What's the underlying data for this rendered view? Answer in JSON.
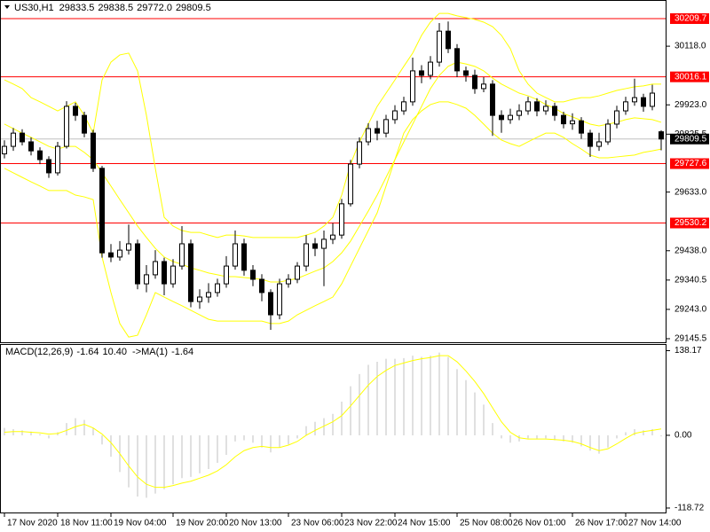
{
  "chart_data": {
    "type": "candlestick",
    "title": "US30,H1",
    "last_low_label": "29772.0",
    "up_color": "#ffffff",
    "down_color": "#000000",
    "categories": [
      "17 Nov 2020",
      null,
      null,
      null,
      null,
      null,
      "18 Nov 11:00",
      null,
      null,
      null,
      null,
      null,
      "19 Nov 04:00",
      null,
      null,
      null,
      null,
      null,
      null,
      "19 Nov 20:00",
      null,
      null,
      null,
      null,
      null,
      "20 Nov 13:00",
      null,
      null,
      null,
      null,
      null,
      null,
      "23 Nov 06:00",
      null,
      null,
      null,
      null,
      null,
      "23 Nov 22:00",
      null,
      null,
      null,
      null,
      null,
      "24 Nov 15:00",
      null,
      null,
      null,
      null,
      null,
      null,
      "25 Nov 08:00",
      null,
      null,
      null,
      null,
      null,
      "26 Nov 01:00",
      null,
      null,
      null,
      null,
      null,
      null,
      "26 Nov 17:00",
      null,
      null,
      null,
      null,
      null,
      "27 Nov 14:00",
      null,
      null,
      null,
      null
    ],
    "candles": [
      [
        29760,
        29805,
        29745,
        29785
      ],
      [
        29785,
        29846,
        29770,
        29829
      ],
      [
        29829,
        29842,
        29788,
        29800
      ],
      [
        29800,
        29815,
        29755,
        29770
      ],
      [
        29770,
        29782,
        29726,
        29741
      ],
      [
        29741,
        29752,
        29680,
        29697
      ],
      [
        29697,
        29800,
        29688,
        29785
      ],
      [
        29785,
        29935,
        29778,
        29918
      ],
      [
        29918,
        29930,
        29870,
        29888
      ],
      [
        29888,
        29900,
        29815,
        29829
      ],
      [
        29829,
        29840,
        29700,
        29712
      ],
      [
        29712,
        29720,
        29415,
        29431
      ],
      [
        29431,
        29460,
        29400,
        29417
      ],
      [
        29417,
        29470,
        29405,
        29440
      ],
      [
        29440,
        29525,
        29425,
        29461
      ],
      [
        29461,
        29475,
        29310,
        29328
      ],
      [
        29328,
        29390,
        29300,
        29358
      ],
      [
        29358,
        29440,
        29345,
        29402
      ],
      [
        29402,
        29415,
        29290,
        29328
      ],
      [
        29328,
        29410,
        29315,
        29387
      ],
      [
        29387,
        29520,
        29375,
        29461
      ],
      [
        29461,
        29475,
        29250,
        29269
      ],
      [
        29269,
        29310,
        29245,
        29284
      ],
      [
        29284,
        29330,
        29265,
        29299
      ],
      [
        29299,
        29345,
        29285,
        29328
      ],
      [
        29328,
        29420,
        29315,
        29387
      ],
      [
        29387,
        29505,
        29375,
        29461
      ],
      [
        29461,
        29478,
        29355,
        29373
      ],
      [
        29373,
        29390,
        29320,
        29343
      ],
      [
        29343,
        29360,
        29270,
        29299
      ],
      [
        29299,
        29310,
        29175,
        29225
      ],
      [
        29225,
        29345,
        29210,
        29328
      ],
      [
        29328,
        29360,
        29315,
        29343
      ],
      [
        29343,
        29400,
        29330,
        29387
      ],
      [
        29387,
        29490,
        29370,
        29461
      ],
      [
        29461,
        29480,
        29420,
        29446
      ],
      [
        29446,
        29505,
        29320,
        29476
      ],
      [
        29476,
        29530,
        29460,
        29490
      ],
      [
        29490,
        29610,
        29478,
        29594
      ],
      [
        29594,
        29740,
        29585,
        29726
      ],
      [
        29726,
        29815,
        29712,
        29800
      ],
      [
        29800,
        29862,
        29788,
        29844
      ],
      [
        29844,
        29870,
        29805,
        29829
      ],
      [
        29829,
        29890,
        29815,
        29874
      ],
      [
        29874,
        29922,
        29860,
        29903
      ],
      [
        29903,
        29950,
        29890,
        29933
      ],
      [
        29933,
        30080,
        29920,
        30036
      ],
      [
        30036,
        30055,
        29995,
        30021
      ],
      [
        30021,
        30085,
        30008,
        30065
      ],
      [
        30065,
        30195,
        30050,
        30168
      ],
      [
        30168,
        30200,
        30095,
        30110
      ],
      [
        30110,
        30125,
        30015,
        30036
      ],
      [
        30036,
        30050,
        30000,
        30021
      ],
      [
        30021,
        30040,
        29960,
        29977
      ],
      [
        29977,
        30015,
        29965,
        29992
      ],
      [
        29992,
        30005,
        29820,
        29888
      ],
      [
        29888,
        29905,
        29830,
        29874
      ],
      [
        29874,
        29910,
        29860,
        29888
      ],
      [
        29888,
        29925,
        29872,
        29903
      ],
      [
        29903,
        29950,
        29890,
        29933
      ],
      [
        29933,
        29945,
        29885,
        29903
      ],
      [
        29903,
        29938,
        29890,
        29918
      ],
      [
        29918,
        29930,
        29870,
        29888
      ],
      [
        29888,
        29900,
        29845,
        29860
      ],
      [
        29860,
        29895,
        29840,
        29870
      ],
      [
        29870,
        29882,
        29810,
        29829
      ],
      [
        29829,
        29840,
        29750,
        29785
      ],
      [
        29785,
        29830,
        29770,
        29800
      ],
      [
        29800,
        29875,
        29790,
        29859
      ],
      [
        29859,
        29920,
        29845,
        29903
      ],
      [
        29903,
        29950,
        29890,
        29933
      ],
      [
        29933,
        30010,
        29920,
        29947
      ],
      [
        29947,
        29960,
        29900,
        29918
      ],
      [
        29918,
        29990,
        29905,
        29962
      ],
      [
        29833.5,
        29838.5,
        29772,
        29809.5
      ]
    ],
    "bands": {
      "color": "#ffff00",
      "upper": [
        30006,
        29992,
        29977,
        29947,
        29933,
        29918,
        29903,
        29918,
        29933,
        29888,
        29829,
        30006,
        30065,
        30089,
        30095,
        30036,
        29888,
        29712,
        29549,
        29520,
        29505,
        29499,
        29499,
        29490,
        29482,
        29490,
        29490,
        29487,
        29482,
        29482,
        29482,
        29482,
        29482,
        29482,
        29490,
        29499,
        29520,
        29549,
        29623,
        29726,
        29800,
        29859,
        29918,
        29962,
        30006,
        30051,
        30095,
        30154,
        30198,
        30227,
        30227,
        30219,
        30213,
        30207,
        30198,
        30183,
        30154,
        30110,
        30036,
        29992,
        29962,
        29947,
        29933,
        29933,
        29941,
        29947,
        29947,
        29953,
        29962,
        29971,
        29977,
        29983,
        29986,
        29992,
        29992
      ],
      "middle": [
        29859,
        29844,
        29829,
        29815,
        29800,
        29785,
        29776,
        29785,
        29785,
        29765,
        29741,
        29697,
        29653,
        29608,
        29564,
        29520,
        29482,
        29446,
        29417,
        29402,
        29393,
        29381,
        29373,
        29364,
        29358,
        29352,
        29352,
        29349,
        29346,
        29343,
        29334,
        29334,
        29340,
        29346,
        29358,
        29370,
        29381,
        29402,
        29431,
        29470,
        29520,
        29570,
        29623,
        29682,
        29741,
        29800,
        29859,
        29918,
        29977,
        30021,
        30051,
        30065,
        30059,
        30051,
        30036,
        30012,
        29992,
        29977,
        29962,
        29953,
        29941,
        29924,
        29912,
        29894,
        29883,
        29871,
        29859,
        29853,
        29859,
        29865,
        29874,
        29880,
        29877,
        29874,
        29865
      ],
      "lower": [
        29712,
        29697,
        29682,
        29667,
        29653,
        29638,
        29638,
        29638,
        29623,
        29617,
        29608,
        29417,
        29299,
        29196,
        29151,
        29157,
        29225,
        29299,
        29284,
        29269,
        29255,
        29240,
        29225,
        29210,
        29204,
        29204,
        29204,
        29204,
        29204,
        29204,
        29196,
        29196,
        29204,
        29225,
        29240,
        29255,
        29269,
        29284,
        29328,
        29387,
        29446,
        29505,
        29564,
        29653,
        29741,
        29829,
        29874,
        29903,
        29924,
        29933,
        29933,
        29924,
        29912,
        29888,
        29859,
        29829,
        29806,
        29794,
        29785,
        29800,
        29815,
        29829,
        29829,
        29815,
        29794,
        29776,
        29756,
        29747,
        29747,
        29750,
        29753,
        29756,
        29765,
        29770,
        29776
      ]
    },
    "levels": {
      "color": "#ff0000",
      "values": [
        30209.7,
        30016.1,
        29727.6,
        29530.2
      ]
    },
    "current_color": "#c0c0c0",
    "ylim": [
      29133.7,
      30271.6
    ],
    "yticks": [
      {
        "value": 30118,
        "label": "30118.0"
      },
      {
        "value": 29923,
        "label": "29923.0"
      },
      29825.5,
      {
        "value": 29633,
        "label": "29633.0"
      },
      {
        "value": 29438,
        "label": "29438.0"
      },
      29340.5,
      {
        "value": 29243,
        "label": "29243.0"
      },
      29145.5
    ],
    "macd": {
      "title": "MACD(12,26,9)",
      "ma_title": "->MA(1)",
      "signal_label": "10.40",
      "histogram_color": "#c0c0c0",
      "signal_color": "#ffff00",
      "histogram": [
        12,
        10,
        8,
        6,
        2,
        -5,
        5,
        20,
        28,
        25,
        12,
        -15,
        -35,
        -60,
        -85,
        -100,
        -102,
        -95,
        -88,
        -80,
        -70,
        -68,
        -62,
        -55,
        -45,
        -32,
        -10,
        -8,
        -12,
        -20,
        -28,
        -20,
        -15,
        -5,
        15,
        22,
        28,
        35,
        55,
        80,
        100,
        115,
        120,
        125,
        125,
        126,
        130,
        128,
        130,
        135,
        128,
        108,
        90,
        70,
        50,
        20,
        -5,
        -12,
        -10,
        -5,
        -6,
        -5,
        -8,
        -10,
        -12,
        -18,
        -25,
        -30,
        -20,
        -5,
        5,
        10,
        8,
        10,
        -1.64
      ],
      "signal": [
        5,
        6,
        6,
        5,
        4,
        2,
        3,
        8,
        14,
        18,
        12,
        2,
        -12,
        -30,
        -50,
        -68,
        -80,
        -85,
        -85,
        -82,
        -78,
        -75,
        -70,
        -65,
        -58,
        -48,
        -35,
        -25,
        -20,
        -18,
        -20,
        -20,
        -16,
        -10,
        0,
        8,
        15,
        22,
        32,
        48,
        65,
        82,
        96,
        106,
        114,
        118,
        122,
        125,
        127,
        130,
        130,
        120,
        105,
        88,
        68,
        45,
        22,
        5,
        -4,
        -6,
        -6,
        -6,
        -7,
        -8,
        -10,
        -14,
        -20,
        -25,
        -22,
        -14,
        -5,
        3,
        6,
        8,
        10.4
      ],
      "ylim": [
        -126,
        149
      ],
      "yticks": [
        138.17,
        {
          "value": 0,
          "label": "0.00"
        },
        -118.72
      ]
    }
  }
}
